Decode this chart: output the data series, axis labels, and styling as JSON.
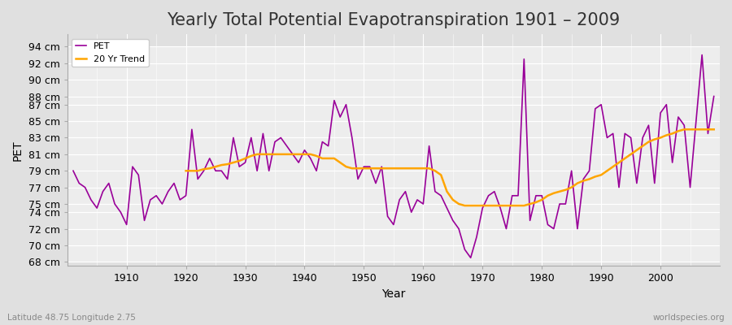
{
  "title": "Yearly Total Potential Evapotranspiration 1901 – 2009",
  "xlabel": "Year",
  "ylabel": "PET",
  "subtitle": "Latitude 48.75 Longitude 2.75",
  "watermark": "worldspecies.org",
  "years": [
    1901,
    1902,
    1903,
    1904,
    1905,
    1906,
    1907,
    1908,
    1909,
    1910,
    1911,
    1912,
    1913,
    1914,
    1915,
    1916,
    1917,
    1918,
    1919,
    1920,
    1921,
    1922,
    1923,
    1924,
    1925,
    1926,
    1927,
    1928,
    1929,
    1930,
    1931,
    1932,
    1933,
    1934,
    1935,
    1936,
    1937,
    1938,
    1939,
    1940,
    1941,
    1942,
    1943,
    1944,
    1945,
    1946,
    1947,
    1948,
    1949,
    1950,
    1951,
    1952,
    1953,
    1954,
    1955,
    1956,
    1957,
    1958,
    1959,
    1960,
    1961,
    1962,
    1963,
    1964,
    1965,
    1966,
    1967,
    1968,
    1969,
    1970,
    1971,
    1972,
    1973,
    1974,
    1975,
    1976,
    1977,
    1978,
    1979,
    1980,
    1981,
    1982,
    1983,
    1984,
    1985,
    1986,
    1987,
    1988,
    1989,
    1990,
    1991,
    1992,
    1993,
    1994,
    1995,
    1996,
    1997,
    1998,
    1999,
    2000,
    2001,
    2002,
    2003,
    2004,
    2005,
    2006,
    2007,
    2008,
    2009
  ],
  "pet": [
    79.0,
    77.5,
    77.0,
    75.5,
    74.5,
    76.5,
    77.5,
    75.0,
    74.0,
    72.5,
    79.5,
    78.5,
    73.0,
    75.5,
    76.0,
    75.0,
    76.5,
    77.5,
    75.5,
    76.0,
    84.0,
    78.0,
    79.0,
    80.5,
    79.0,
    79.0,
    78.0,
    83.0,
    79.5,
    80.0,
    83.0,
    79.0,
    83.5,
    79.0,
    82.5,
    83.0,
    82.0,
    81.0,
    80.0,
    81.5,
    80.5,
    79.0,
    82.5,
    82.0,
    87.5,
    85.5,
    87.0,
    83.0,
    78.0,
    79.5,
    79.5,
    77.5,
    79.5,
    73.5,
    72.5,
    75.5,
    76.5,
    74.0,
    75.5,
    75.0,
    82.0,
    76.5,
    76.0,
    74.5,
    73.0,
    72.0,
    69.5,
    68.5,
    71.0,
    74.5,
    76.0,
    76.5,
    74.5,
    72.0,
    76.0,
    76.0,
    92.5,
    73.0,
    76.0,
    76.0,
    72.5,
    72.0,
    75.0,
    75.0,
    79.0,
    72.0,
    78.0,
    79.0,
    86.5,
    87.0,
    83.0,
    83.5,
    77.0,
    83.5,
    83.0,
    77.5,
    83.0,
    84.5,
    77.5,
    86.0,
    87.0,
    80.0,
    85.5,
    84.5,
    77.0,
    85.0,
    93.0,
    83.5,
    88.0
  ],
  "trend_years": [
    1920,
    1921,
    1922,
    1923,
    1924,
    1925,
    1926,
    1927,
    1928,
    1929,
    1930,
    1931,
    1932,
    1933,
    1934,
    1935,
    1936,
    1937,
    1938,
    1939,
    1940,
    1941,
    1942,
    1943,
    1944,
    1945,
    1946,
    1947,
    1948,
    1949,
    1950,
    1951,
    1952,
    1953,
    1954,
    1955,
    1956,
    1957,
    1958,
    1959,
    1960,
    1961,
    1962,
    1963,
    1964,
    1965,
    1966,
    1967,
    1968,
    1969,
    1970,
    1971,
    1972,
    1973,
    1974,
    1975,
    1976,
    1977,
    1978,
    1979,
    1980,
    1981,
    1982,
    1983,
    1984,
    1985,
    1986,
    1987,
    1988,
    1989,
    1990,
    1991,
    1992,
    1993,
    1994,
    1995,
    1996,
    1997,
    1998,
    1999,
    2000,
    2001,
    2002,
    2003,
    2004,
    2005,
    2006,
    2007,
    2008,
    2009
  ],
  "trend": [
    79.0,
    79.0,
    79.0,
    79.2,
    79.3,
    79.5,
    79.7,
    79.8,
    80.0,
    80.2,
    80.5,
    80.8,
    81.0,
    81.0,
    81.0,
    81.0,
    81.0,
    81.0,
    81.0,
    81.0,
    81.0,
    81.0,
    80.8,
    80.5,
    80.5,
    80.5,
    80.0,
    79.5,
    79.3,
    79.3,
    79.3,
    79.3,
    79.3,
    79.3,
    79.3,
    79.3,
    79.3,
    79.3,
    79.3,
    79.3,
    79.3,
    79.3,
    79.0,
    78.5,
    76.5,
    75.5,
    75.0,
    74.8,
    74.8,
    74.8,
    74.8,
    74.8,
    74.8,
    74.8,
    74.8,
    74.8,
    74.8,
    74.8,
    75.0,
    75.2,
    75.5,
    76.0,
    76.3,
    76.5,
    76.7,
    77.0,
    77.5,
    77.8,
    78.0,
    78.3,
    78.5,
    79.0,
    79.5,
    80.0,
    80.5,
    81.0,
    81.5,
    82.0,
    82.5,
    82.8,
    83.0,
    83.3,
    83.5,
    83.8,
    84.0,
    84.0,
    84.0,
    84.0,
    84.0,
    84.0
  ],
  "pet_color": "#990099",
  "trend_color": "#FFA500",
  "bg_color": "#e0e0e0",
  "grid_color": "#ffffff",
  "ylim": [
    67.5,
    95.5
  ],
  "ytick_values": [
    68,
    70,
    72,
    74,
    75,
    77,
    79,
    81,
    83,
    85,
    87,
    88,
    90,
    92,
    94
  ],
  "xtick_values": [
    1910,
    1920,
    1930,
    1940,
    1950,
    1960,
    1970,
    1980,
    1990,
    2000
  ],
  "title_fontsize": 15,
  "axis_fontsize": 9,
  "legend_fontsize": 8
}
